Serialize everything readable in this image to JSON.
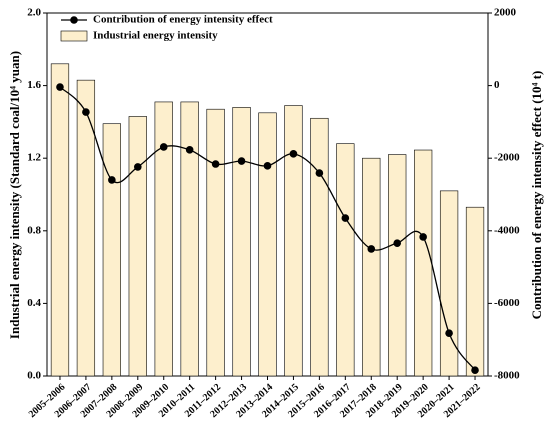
{
  "chart_data": {
    "type": "bar",
    "categories": [
      "2005–2006",
      "2006–2007",
      "2007–2008",
      "2008–2009",
      "2009–2010",
      "2010–2011",
      "2011–2012",
      "2012–2013",
      "2013–2014",
      "2014–2015",
      "2015–2016",
      "2016–2017",
      "2017–2018",
      "2018–2019",
      "2019–2020",
      "2020–2021",
      "2021–2022"
    ],
    "series": [
      {
        "name": "Contribution of energy intensity effect",
        "type": "line",
        "axis": "y2",
        "color": "#000000",
        "values": [
          -40,
          -730,
          -2600,
          -2240,
          -1690,
          -1770,
          -2160,
          -2080,
          -2210,
          -1880,
          -2410,
          -3650,
          -4500,
          -4340,
          -4170,
          -6820,
          -7840
        ]
      },
      {
        "name": "Industrial energy intensity",
        "type": "bar",
        "color": "#fdefcd",
        "values": [
          1.72,
          1.63,
          1.39,
          1.43,
          1.51,
          1.51,
          1.47,
          1.48,
          1.45,
          1.49,
          1.42,
          1.28,
          1.2,
          1.22,
          1.245,
          1.02,
          0.93
        ]
      }
    ],
    "ylabel": "Industrial energy intensity (Standard coal/10⁴ yuan)",
    "y2label": "Contribution of energy intensity effect (10⁴ t)",
    "ylim": [
      0,
      2
    ],
    "yticks": [
      {
        "value": 0,
        "label": "0.0"
      },
      0.4,
      0.8,
      1.2,
      1.6,
      {
        "value": 2,
        "label": "2.0"
      }
    ],
    "y2lim": [
      -8000,
      2000
    ],
    "y2ticks": [
      -8000,
      -6000,
      -4000,
      -2000,
      0,
      2000
    ],
    "legend": "upper left"
  }
}
